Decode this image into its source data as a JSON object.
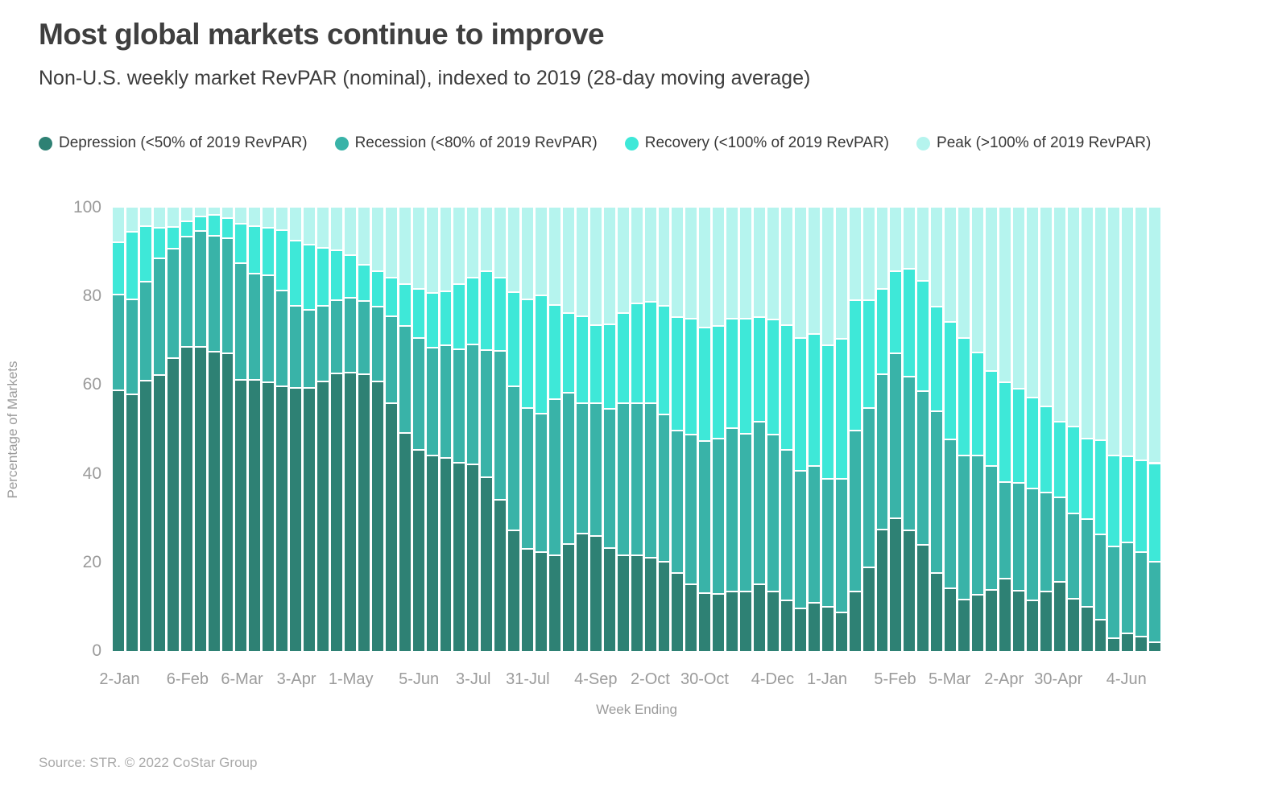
{
  "header": {
    "title": "Most global markets continue to improve",
    "subtitle": "Non-U.S. weekly market RevPAR (nominal), indexed to 2019 (28-day moving average)"
  },
  "footer": {
    "source": "Source: STR. © 2022 CoStar Group"
  },
  "chart_data": {
    "type": "bar",
    "subtype": "stacked-100-percent",
    "title": "Most global markets continue to improve",
    "subtitle": "Non-U.S. weekly market RevPAR (nominal), indexed to 2019 (28-day moving average)",
    "xlabel": "Week Ending",
    "ylabel": "Percentage of Markets",
    "ylim": [
      0,
      100
    ],
    "grid": false,
    "legend_position": "top",
    "y_ticks": [
      "0",
      "20",
      "40",
      "60",
      "80",
      "100"
    ],
    "x_ticks": [
      {
        "i": 0,
        "label": "2-Jan"
      },
      {
        "i": 5,
        "label": "6-Feb"
      },
      {
        "i": 9,
        "label": "6-Mar"
      },
      {
        "i": 13,
        "label": "3-Apr"
      },
      {
        "i": 17,
        "label": "1-May"
      },
      {
        "i": 22,
        "label": "5-Jun"
      },
      {
        "i": 26,
        "label": "3-Jul"
      },
      {
        "i": 30,
        "label": "31-Jul"
      },
      {
        "i": 35,
        "label": "4-Sep"
      },
      {
        "i": 39,
        "label": "2-Oct"
      },
      {
        "i": 43,
        "label": "30-Oct"
      },
      {
        "i": 48,
        "label": "4-Dec"
      },
      {
        "i": 52,
        "label": "1-Jan"
      },
      {
        "i": 57,
        "label": "5-Feb"
      },
      {
        "i": 61,
        "label": "5-Mar"
      },
      {
        "i": 65,
        "label": "2-Apr"
      },
      {
        "i": 69,
        "label": "30-Apr"
      },
      {
        "i": 74,
        "label": "4-Jun"
      }
    ],
    "legend": [
      {
        "key": "depression",
        "label": "Depression (<50% of 2019 RevPAR)",
        "color": "#2E8174"
      },
      {
        "key": "recession",
        "label": "Recession (<80% of 2019 RevPAR)",
        "color": "#39B3A8"
      },
      {
        "key": "recovery",
        "label": "Recovery (<100% of 2019 RevPAR)",
        "color": "#3EE8D8"
      },
      {
        "key": "peak",
        "label": "Peak (>100% of 2019 RevPAR)",
        "color": "#B5F4EE"
      }
    ],
    "values_are": "cumulative percent tops per weekly bar; peak fills to 100",
    "cumulative_tops": {
      "depression": [
        58.7,
        57.8,
        60.8,
        62.0,
        65.8,
        68.5,
        68.4,
        67.3,
        66.9,
        61.0,
        61.0,
        60.5,
        59.5,
        59.2,
        59.2,
        60.7,
        62.5,
        62.7,
        62.2,
        60.7,
        55.7,
        49.0,
        45.2,
        44.0,
        43.4,
        42.2,
        42.0,
        39.0,
        34.0,
        27.0,
        22.9,
        22.1,
        21.4,
        24.0,
        26.3,
        25.7,
        23.1,
        21.4,
        21.4,
        20.9,
        19.9,
        17.4,
        14.8,
        12.8,
        12.7,
        13.2,
        13.2,
        14.8,
        13.2,
        11.3,
        9.5,
        10.7,
        9.8,
        8.6,
        13.2,
        18.7,
        27.2,
        29.8,
        27.0,
        23.8,
        17.4,
        14.0,
        11.4,
        12.5,
        13.7,
        16.2,
        13.4,
        11.3,
        13.2,
        15.5,
        11.6,
        9.8,
        6.9,
        2.8,
        3.8,
        3.0,
        1.8
      ],
      "recession": [
        80.2,
        79.1,
        83.1,
        88.4,
        90.6,
        93.3,
        94.6,
        93.5,
        92.9,
        87.3,
        85.0,
        84.6,
        81.1,
        77.7,
        76.7,
        77.7,
        78.9,
        79.5,
        78.8,
        77.5,
        75.3,
        73.1,
        70.5,
        68.2,
        68.7,
        67.9,
        69.0,
        67.7,
        67.5,
        59.5,
        54.7,
        53.4,
        56.6,
        58.1,
        55.7,
        55.7,
        54.4,
        55.8,
        55.8,
        55.7,
        53.2,
        49.5,
        48.6,
        47.2,
        47.7,
        50.1,
        48.9,
        51.6,
        48.6,
        45.2,
        40.4,
        41.5,
        38.6,
        38.7,
        49.5,
        54.6,
        62.2,
        66.9,
        61.7,
        58.4,
        53.9,
        47.5,
        43.9,
        43.9,
        41.5,
        38.0,
        37.7,
        36.5,
        35.5,
        34.4,
        30.8,
        29.5,
        26.1,
        23.5,
        24.3,
        22.2,
        19.9
      ],
      "recovery": [
        92.0,
        94.3,
        95.6,
        95.2,
        95.5,
        96.7,
        97.9,
        98.1,
        97.5,
        96.2,
        95.6,
        95.3,
        94.7,
        92.4,
        91.4,
        90.8,
        90.2,
        89.2,
        86.9,
        85.5,
        84.1,
        82.6,
        81.5,
        80.5,
        81.0,
        82.5,
        84.0,
        85.5,
        84.1,
        80.8,
        79.2,
        80.1,
        77.8,
        76.0,
        75.3,
        73.4,
        73.5,
        76.0,
        78.2,
        78.5,
        77.7,
        75.1,
        74.7,
        72.7,
        73.1,
        74.7,
        74.7,
        75.1,
        74.6,
        73.4,
        70.4,
        71.3,
        68.8,
        70.3,
        79.0,
        79.0,
        81.5,
        85.5,
        86.0,
        83.3,
        77.5,
        74.0,
        70.4,
        67.2,
        63.0,
        60.5,
        59.0,
        57.0,
        55.0,
        51.5,
        50.4,
        47.7,
        47.4,
        44.0,
        43.7,
        42.8,
        42.2
      ]
    }
  }
}
